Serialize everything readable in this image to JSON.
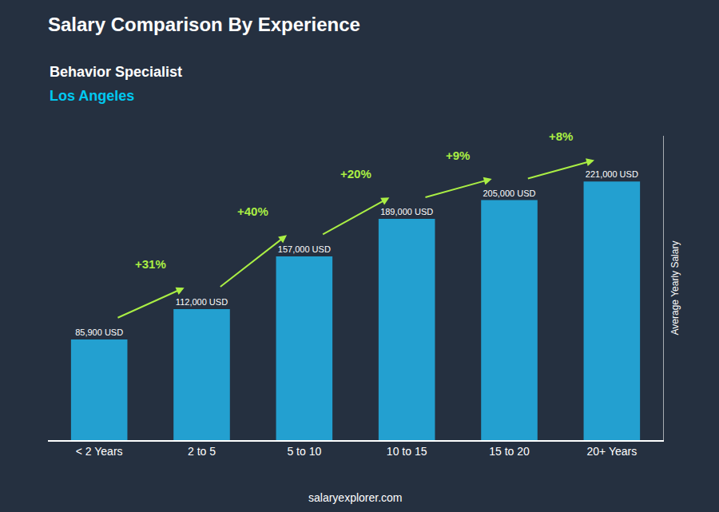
{
  "chart_data": {
    "type": "bar",
    "title": "Salary Comparison By Experience",
    "subtitle": [
      "Behavior Specialist",
      "Los Angeles"
    ],
    "ylabel": "Average Yearly Salary",
    "footer": "salaryexplorer.com",
    "categories": [
      "< 2 Years",
      "2 to 5",
      "5 to 10",
      "10 to 15",
      "15 to 20",
      "20+ Years"
    ],
    "values": [
      85900,
      112000,
      157000,
      189000,
      205000,
      221000
    ],
    "value_labels": [
      "85,900 USD",
      "112,000 USD",
      "157,000 USD",
      "189,000 USD",
      "205,000 USD",
      "221,000 USD"
    ],
    "data_labels": true,
    "color": "#23a0d0",
    "ylim": [
      0,
      260000
    ],
    "tick_labels": "x",
    "grid": false,
    "annotations": [
      {
        "text": "+31%",
        "from": "< 2 Years",
        "to": "2 to 5",
        "color": "#aaee44"
      },
      {
        "text": "+40%",
        "from": "2 to 5",
        "to": "5 to 10",
        "color": "#aaee44"
      },
      {
        "text": "+20%",
        "from": "5 to 10",
        "to": "10 to 15",
        "color": "#aaee44"
      },
      {
        "text": "+9%",
        "from": "10 to 15",
        "to": "15 to 20",
        "color": "#aaee44"
      },
      {
        "text": "+8%",
        "from": "15 to 20",
        "to": "20+ Years",
        "color": "#aaee44"
      }
    ]
  }
}
